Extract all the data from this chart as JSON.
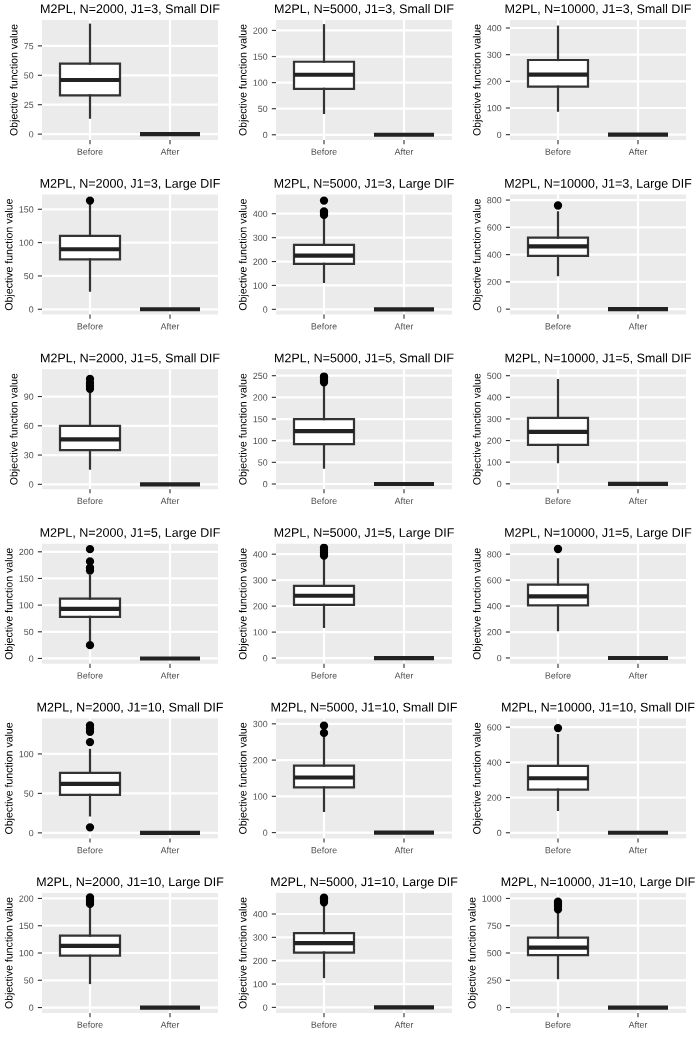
{
  "chart_data": [
    {
      "type": "box",
      "title": "M2PL, N=2000, J1=3, Small DIF",
      "ylabel": "Objective function value",
      "categories": [
        "Before",
        "After"
      ],
      "ylim": [
        -5,
        97
      ],
      "yticks": [
        0,
        25,
        50,
        75
      ],
      "grid": true,
      "boxes": [
        {
          "low": 14,
          "q1": 33,
          "median": 46,
          "q3": 60,
          "high": 93
        },
        {
          "low": 0,
          "q1": 0,
          "median": 0,
          "q3": 0,
          "high": 0
        }
      ]
    },
    {
      "type": "box",
      "title": "M2PL, N=5000, J1=3, Small DIF",
      "ylabel": "Objective function value",
      "categories": [
        "Before",
        "After"
      ],
      "ylim": [
        -10,
        220
      ],
      "yticks": [
        0,
        50,
        100,
        150,
        200
      ],
      "grid": true,
      "boxes": [
        {
          "low": 42,
          "q1": 88,
          "median": 115,
          "q3": 140,
          "high": 210
        },
        {
          "low": 0,
          "q1": 0,
          "median": 0,
          "q3": 0,
          "high": 0
        }
      ]
    },
    {
      "type": "box",
      "title": "M2PL, N=10000, J1=3, Small DIF",
      "ylabel": "Objective function value",
      "categories": [
        "Before",
        "After"
      ],
      "ylim": [
        -20,
        430
      ],
      "yticks": [
        0,
        100,
        200,
        300,
        400
      ],
      "grid": true,
      "boxes": [
        {
          "low": 90,
          "q1": 180,
          "median": 225,
          "q3": 280,
          "high": 405
        },
        {
          "low": 0,
          "q1": 0,
          "median": 0,
          "q3": 0,
          "high": 0
        }
      ]
    },
    {
      "type": "box",
      "title": "M2PL, N=2000, J1=3, Large DIF",
      "ylabel": "Objective function value",
      "categories": [
        "Before",
        "After"
      ],
      "ylim": [
        -8,
        172
      ],
      "yticks": [
        0,
        50,
        100,
        150
      ],
      "grid": true,
      "boxes": [
        {
          "low": 28,
          "q1": 75,
          "median": 90,
          "q3": 110,
          "high": 158,
          "outliers": [
            163
          ]
        },
        {
          "low": 0,
          "q1": 0,
          "median": 0,
          "q3": 0,
          "high": 0
        }
      ]
    },
    {
      "type": "box",
      "title": "M2PL, N=5000, J1=3, Large DIF",
      "ylabel": "Objective function value",
      "categories": [
        "Before",
        "After"
      ],
      "ylim": [
        -22,
        480
      ],
      "yticks": [
        0,
        100,
        200,
        300,
        400
      ],
      "grid": true,
      "boxes": [
        {
          "low": 115,
          "q1": 190,
          "median": 225,
          "q3": 270,
          "high": 385,
          "outliers": [
            395,
            405,
            410,
            455
          ]
        },
        {
          "low": 0,
          "q1": 0,
          "median": 0,
          "q3": 0,
          "high": 0
        }
      ]
    },
    {
      "type": "box",
      "title": "M2PL, N=10000, J1=3, Large DIF",
      "ylabel": "Objective function value",
      "categories": [
        "Before",
        "After"
      ],
      "ylim": [
        -40,
        840
      ],
      "yticks": [
        0,
        200,
        400,
        600,
        800
      ],
      "grid": true,
      "boxes": [
        {
          "low": 250,
          "q1": 390,
          "median": 460,
          "q3": 525,
          "high": 710,
          "outliers": [
            760
          ]
        },
        {
          "low": 0,
          "q1": 0,
          "median": 0,
          "q3": 0,
          "high": 0
        }
      ]
    },
    {
      "type": "box",
      "title": "M2PL, N=2000, J1=5, Small DIF",
      "ylabel": "Objective function value",
      "categories": [
        "Before",
        "After"
      ],
      "ylim": [
        -5,
        118
      ],
      "yticks": [
        0,
        30,
        60,
        90
      ],
      "grid": true,
      "boxes": [
        {
          "low": 16,
          "q1": 35,
          "median": 46,
          "q3": 60,
          "high": 94,
          "outliers": [
            98,
            101,
            104,
            108
          ]
        },
        {
          "low": 0,
          "q1": 0,
          "median": 0,
          "q3": 0,
          "high": 0
        }
      ]
    },
    {
      "type": "box",
      "title": "M2PL, N=5000, J1=5, Small DIF",
      "ylabel": "Objective function value",
      "categories": [
        "Before",
        "After"
      ],
      "ylim": [
        -12,
        265
      ],
      "yticks": [
        0,
        50,
        100,
        150,
        200,
        250
      ],
      "grid": true,
      "boxes": [
        {
          "low": 38,
          "q1": 92,
          "median": 122,
          "q3": 150,
          "high": 225,
          "outliers": [
            235,
            240,
            245,
            248
          ]
        },
        {
          "low": 0,
          "q1": 0,
          "median": 0,
          "q3": 0,
          "high": 0
        }
      ]
    },
    {
      "type": "box",
      "title": "M2PL, N=10000, J1=5, Small DIF",
      "ylabel": "Objective function value",
      "categories": [
        "Before",
        "After"
      ],
      "ylim": [
        -25,
        530
      ],
      "yticks": [
        0,
        100,
        200,
        300,
        400,
        500
      ],
      "grid": true,
      "boxes": [
        {
          "low": 100,
          "q1": 180,
          "median": 240,
          "q3": 305,
          "high": 480
        },
        {
          "low": 0,
          "q1": 0,
          "median": 0,
          "q3": 0,
          "high": 0
        }
      ]
    },
    {
      "type": "box",
      "title": "M2PL, N=2000, J1=5, Large DIF",
      "ylabel": "Objective function value",
      "categories": [
        "Before",
        "After"
      ],
      "ylim": [
        -10,
        215
      ],
      "yticks": [
        0,
        50,
        100,
        150,
        200
      ],
      "grid": true,
      "boxes": [
        {
          "low": 35,
          "q1": 78,
          "median": 93,
          "q3": 112,
          "high": 155,
          "outliers": [
            25,
            165,
            170,
            182,
            205
          ]
        },
        {
          "low": 0,
          "q1": 0,
          "median": 0,
          "q3": 0,
          "high": 0
        }
      ]
    },
    {
      "type": "box",
      "title": "M2PL, N=5000, J1=5, Large DIF",
      "ylabel": "Objective function value",
      "categories": [
        "Before",
        "After"
      ],
      "ylim": [
        -22,
        440
      ],
      "yticks": [
        0,
        100,
        200,
        300,
        400
      ],
      "grid": true,
      "boxes": [
        {
          "low": 120,
          "q1": 205,
          "median": 240,
          "q3": 278,
          "high": 385,
          "outliers": [
            395,
            405,
            415,
            425
          ]
        },
        {
          "low": 0,
          "q1": 0,
          "median": 0,
          "q3": 0,
          "high": 0
        }
      ]
    },
    {
      "type": "box",
      "title": "M2PL, N=10000, J1=5, Large DIF",
      "ylabel": "Objective function value",
      "categories": [
        "Before",
        "After"
      ],
      "ylim": [
        -45,
        880
      ],
      "yticks": [
        0,
        200,
        400,
        600,
        800
      ],
      "grid": true,
      "boxes": [
        {
          "low": 215,
          "q1": 405,
          "median": 475,
          "q3": 565,
          "high": 760,
          "outliers": [
            840
          ]
        },
        {
          "low": 0,
          "q1": 0,
          "median": 0,
          "q3": 0,
          "high": 0
        }
      ]
    },
    {
      "type": "box",
      "title": "M2PL, N=2000, J1=10, Small DIF",
      "ylabel": "Objective function value",
      "categories": [
        "Before",
        "After"
      ],
      "ylim": [
        -7,
        145
      ],
      "yticks": [
        0,
        50,
        100
      ],
      "grid": true,
      "boxes": [
        {
          "low": 22,
          "q1": 48,
          "median": 62,
          "q3": 76,
          "high": 105,
          "outliers": [
            7,
            115,
            128,
            132,
            136
          ]
        },
        {
          "low": 0,
          "q1": 0,
          "median": 0,
          "q3": 0,
          "high": 0
        }
      ]
    },
    {
      "type": "box",
      "title": "M2PL, N=5000, J1=10, Small DIF",
      "ylabel": "Objective function value",
      "categories": [
        "Before",
        "After"
      ],
      "ylim": [
        -16,
        315
      ],
      "yticks": [
        0,
        100,
        200,
        300
      ],
      "grid": true,
      "boxes": [
        {
          "low": 60,
          "q1": 125,
          "median": 152,
          "q3": 185,
          "high": 265,
          "outliers": [
            275,
            295
          ]
        },
        {
          "low": 0,
          "q1": 0,
          "median": 0,
          "q3": 0,
          "high": 0
        }
      ]
    },
    {
      "type": "box",
      "title": "M2PL, N=10000, J1=10, Small DIF",
      "ylabel": "Objective function value",
      "categories": [
        "Before",
        "After"
      ],
      "ylim": [
        -32,
        650
      ],
      "yticks": [
        0,
        200,
        400,
        600
      ],
      "grid": true,
      "boxes": [
        {
          "low": 130,
          "q1": 245,
          "median": 310,
          "q3": 380,
          "high": 555,
          "outliers": [
            595
          ]
        },
        {
          "low": 0,
          "q1": 0,
          "median": 0,
          "q3": 0,
          "high": 0
        }
      ]
    },
    {
      "type": "box",
      "title": "M2PL, N=2000, J1=10, Large DIF",
      "ylabel": "Objective function value",
      "categories": [
        "Before",
        "After"
      ],
      "ylim": [
        -10,
        210
      ],
      "yticks": [
        0,
        50,
        100,
        150,
        200
      ],
      "grid": true,
      "boxes": [
        {
          "low": 45,
          "q1": 95,
          "median": 113,
          "q3": 132,
          "high": 185,
          "outliers": [
            190,
            195,
            198,
            202
          ]
        },
        {
          "low": 0,
          "q1": 0,
          "median": 0,
          "q3": 0,
          "high": 0
        }
      ]
    },
    {
      "type": "box",
      "title": "M2PL, N=5000, J1=10, Large DIF",
      "ylabel": "Objective function value",
      "categories": [
        "Before",
        "After"
      ],
      "ylim": [
        -24,
        490
      ],
      "yticks": [
        0,
        100,
        200,
        300,
        400
      ],
      "grid": true,
      "boxes": [
        {
          "low": 130,
          "q1": 235,
          "median": 275,
          "q3": 318,
          "high": 440,
          "outliers": [
            450,
            460,
            465,
            470
          ]
        },
        {
          "low": 0,
          "q1": 0,
          "median": 0,
          "q3": 0,
          "high": 0
        }
      ]
    },
    {
      "type": "box",
      "title": "M2PL, N=10000, J1=10, Large DIF",
      "ylabel": "Objective function value",
      "categories": [
        "Before",
        "After"
      ],
      "ylim": [
        -50,
        1050
      ],
      "yticks": [
        0,
        250,
        500,
        750,
        1000
      ],
      "grid": true,
      "boxes": [
        {
          "low": 270,
          "q1": 480,
          "median": 550,
          "q3": 640,
          "high": 880,
          "outliers": [
            900,
            930,
            950,
            970
          ]
        },
        {
          "low": 0,
          "q1": 0,
          "median": 0,
          "q3": 0,
          "high": 0
        }
      ]
    }
  ]
}
